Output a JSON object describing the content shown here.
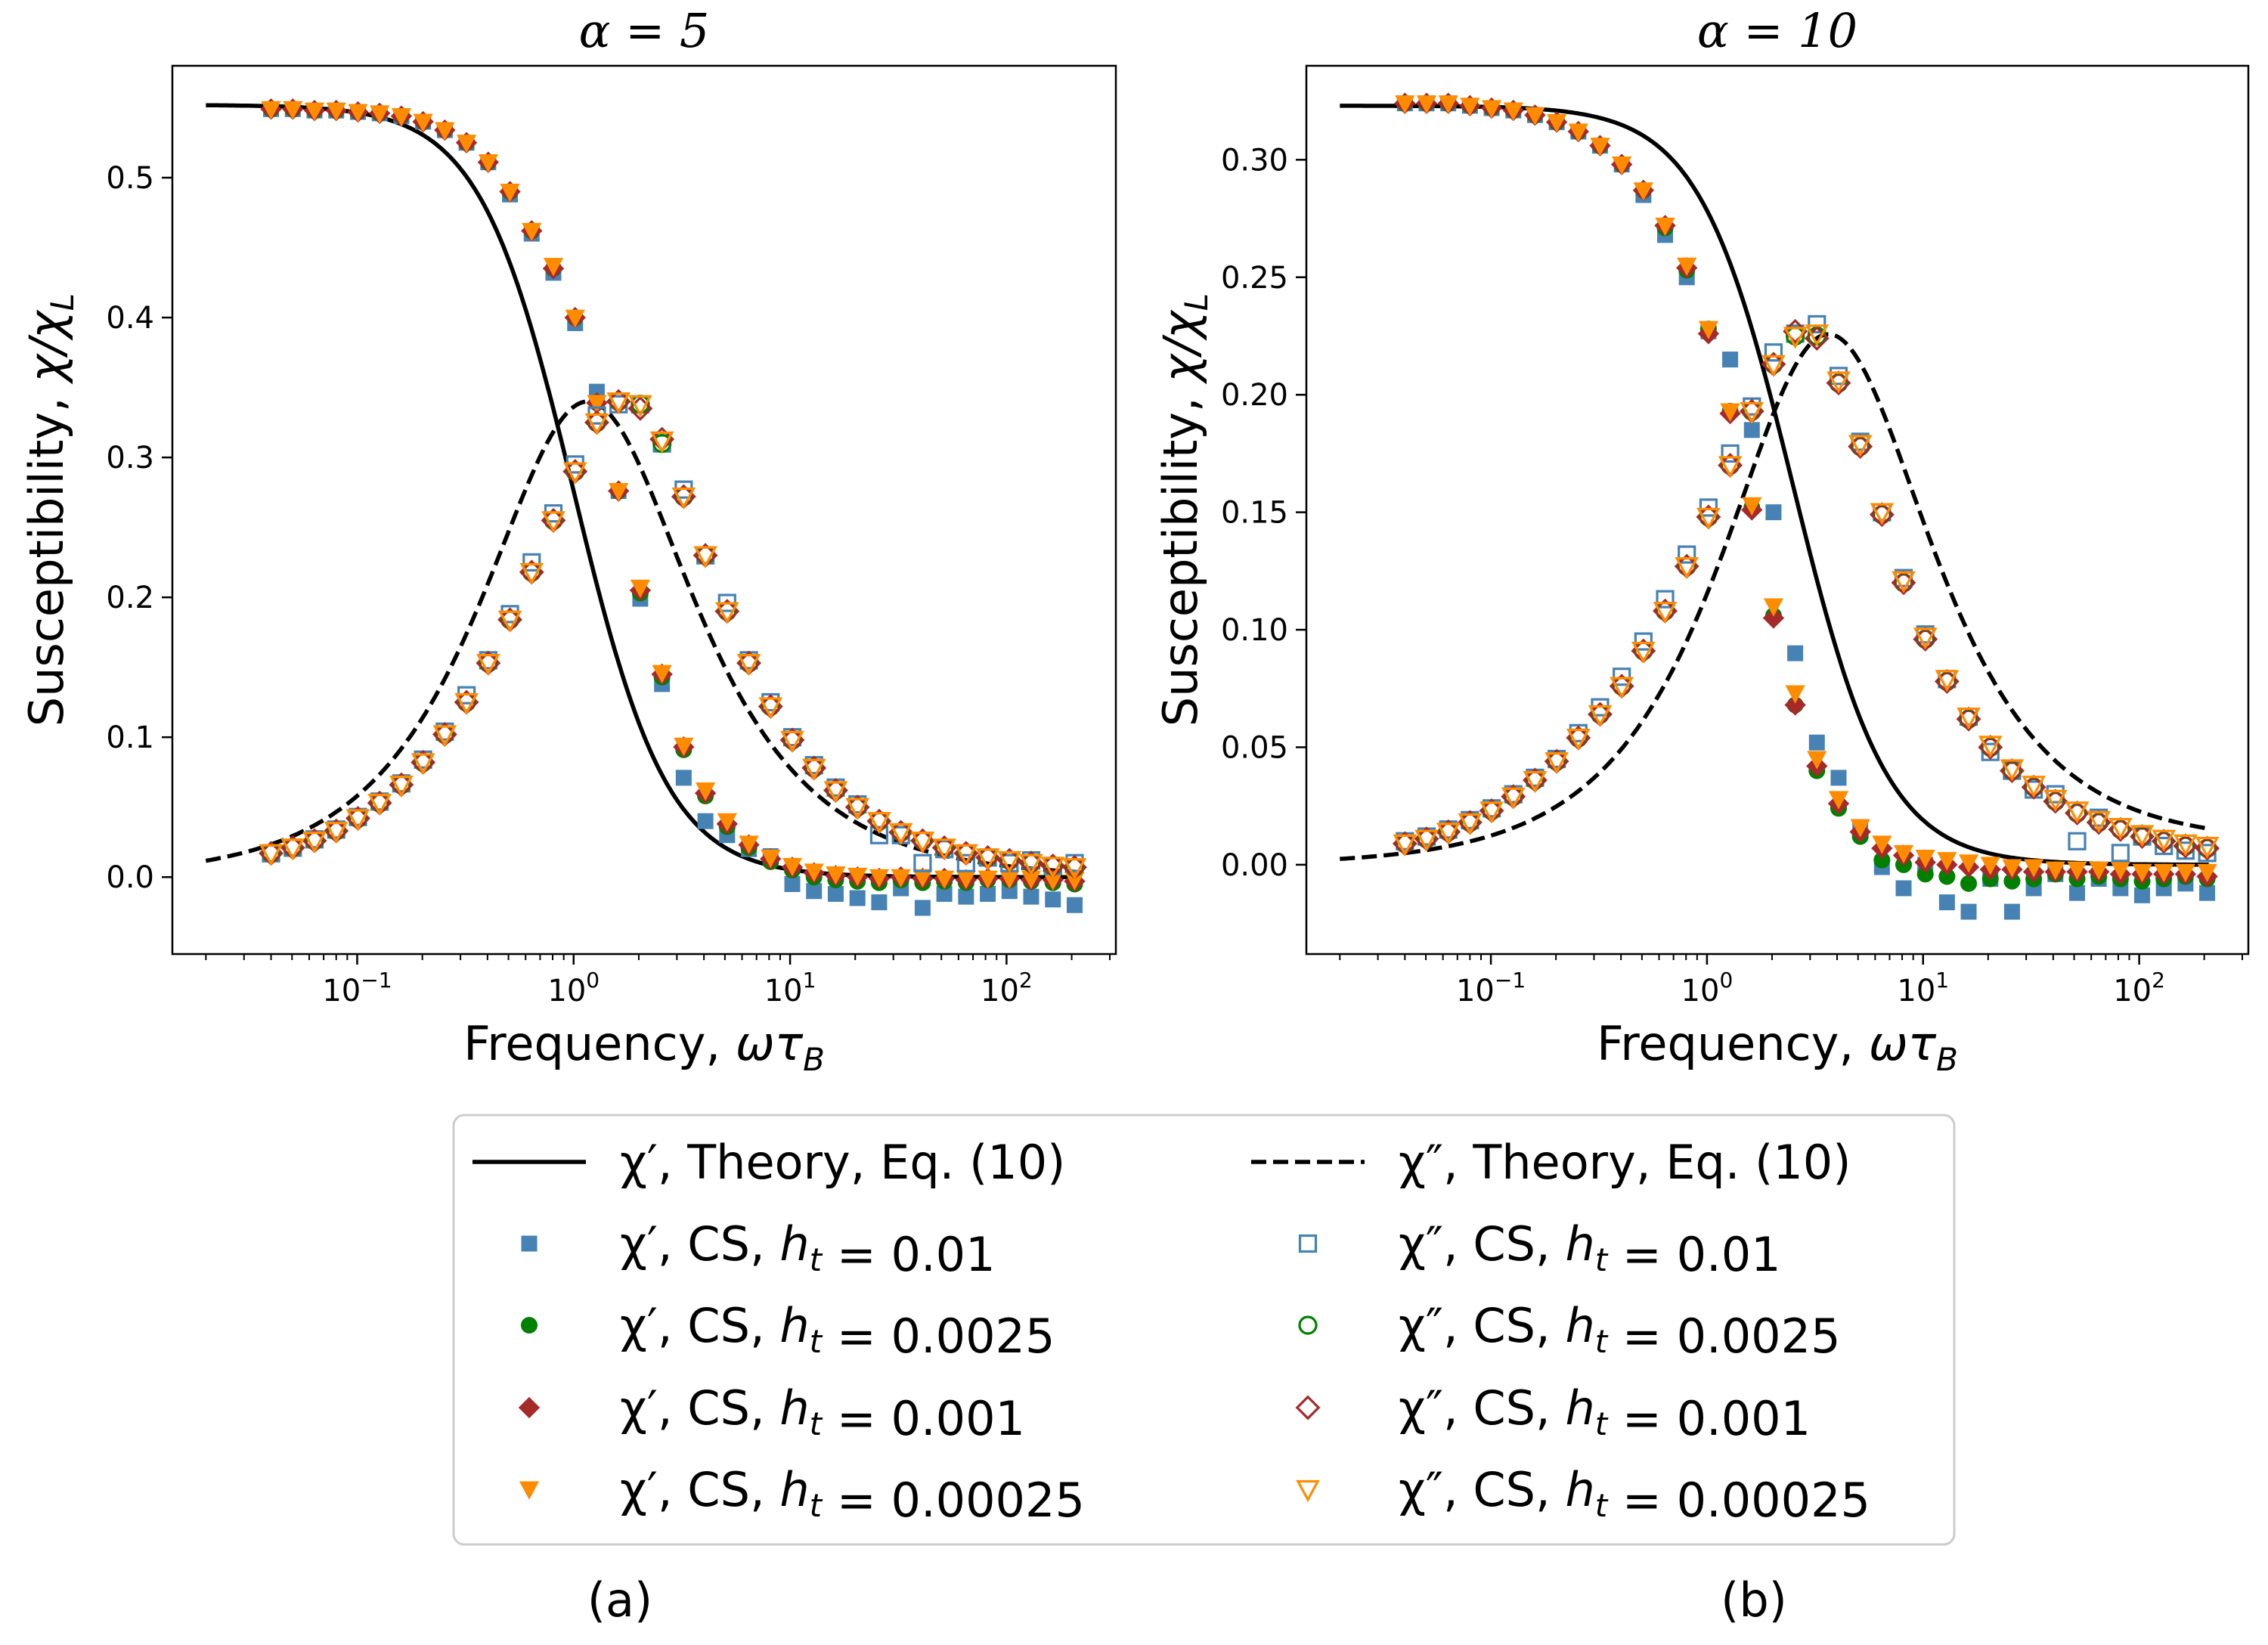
{
  "chart_data": [
    {
      "type": "scatter",
      "panel_label": "(a)",
      "title": "α = 5",
      "xlabel": "Frequency, ωτ_B",
      "ylabel": "Susceptibility, χ/χ_L",
      "xscale": "log",
      "xlim": [
        0.014,
        320
      ],
      "ylim": [
        -0.055,
        0.58
      ],
      "xticks": [
        "10^-1",
        "10^0",
        "10^1",
        "10^2"
      ],
      "yticks": [
        0.0,
        0.1,
        0.2,
        0.3,
        0.4,
        0.5
      ],
      "ytick_labels": [
        "0.0",
        "0.1",
        "0.2",
        "0.3",
        "0.4",
        "0.5"
      ],
      "theory": {
        "chi0": 0.552,
        "tau_real": 1.0,
        "tau_imag": 0.86,
        "peak_imag": 0.34,
        "imag_rolloff": 0.0
      },
      "x": [
        0.04,
        0.0504,
        0.0635,
        0.08,
        0.1008,
        0.127,
        0.16,
        0.2016,
        0.254,
        0.32,
        0.4032,
        0.508,
        0.64,
        0.8063,
        1.016,
        1.28,
        1.613,
        2.032,
        2.56,
        3.225,
        4.064,
        5.12,
        6.451,
        8.127,
        10.24,
        12.9,
        16.25,
        20.48,
        25.8,
        32.51,
        40.96,
        51.61,
        65.02,
        81.92,
        103.2,
        130.0,
        163.8,
        206.4
      ],
      "series": [
        {
          "name": "χ′, CS, h_t = 0.01",
          "marker": "square-filled",
          "color": "#4682b4",
          "values": [
            0.549,
            0.549,
            0.548,
            0.548,
            0.547,
            0.546,
            0.544,
            0.54,
            0.534,
            0.525,
            0.511,
            0.488,
            0.46,
            0.432,
            0.396,
            0.347,
            0.276,
            0.199,
            0.138,
            0.071,
            0.04,
            0.03,
            0.02,
            0.015,
            -0.005,
            -0.01,
            -0.012,
            -0.015,
            -0.018,
            -0.008,
            -0.022,
            -0.012,
            -0.014,
            -0.012,
            -0.01,
            -0.014,
            -0.016,
            -0.02
          ]
        },
        {
          "name": "χ′, CS, h_t = 0.0025",
          "marker": "circle-filled",
          "color": "#008000",
          "values": [
            0.549,
            0.549,
            0.548,
            0.548,
            0.547,
            0.546,
            0.544,
            0.54,
            0.534,
            0.525,
            0.511,
            0.49,
            0.462,
            0.435,
            0.4,
            0.339,
            0.276,
            0.203,
            0.143,
            0.091,
            0.058,
            0.036,
            0.021,
            0.011,
            0.005,
            0.0,
            -0.002,
            -0.003,
            -0.004,
            -0.002,
            -0.004,
            -0.003,
            -0.004,
            -0.002,
            -0.002,
            -0.003,
            -0.004,
            -0.005
          ]
        },
        {
          "name": "χ′, CS, h_t = 0.001",
          "marker": "diamond-filled",
          "color": "#a52a2a",
          "values": [
            0.549,
            0.549,
            0.548,
            0.548,
            0.547,
            0.546,
            0.544,
            0.54,
            0.534,
            0.525,
            0.511,
            0.49,
            0.462,
            0.435,
            0.4,
            0.339,
            0.276,
            0.205,
            0.145,
            0.093,
            0.06,
            0.038,
            0.023,
            0.013,
            0.007,
            0.003,
            0.001,
            0.0,
            -0.001,
            0.0,
            -0.001,
            -0.001,
            -0.002,
            -0.001,
            -0.001,
            -0.002,
            -0.002,
            -0.003
          ]
        },
        {
          "name": "χ′, CS, h_t = 0.00025",
          "marker": "triangle-down-filled",
          "color": "#ff8c00",
          "values": [
            0.549,
            0.549,
            0.548,
            0.548,
            0.547,
            0.546,
            0.544,
            0.54,
            0.534,
            0.525,
            0.511,
            0.49,
            0.462,
            0.437,
            0.4,
            0.339,
            0.276,
            0.207,
            0.146,
            0.094,
            0.062,
            0.04,
            0.024,
            0.014,
            0.008,
            0.004,
            0.002,
            0.001,
            0.0,
            0.0,
            0.0,
            -0.001,
            -0.001,
            -0.001,
            -0.001,
            -0.001,
            -0.002,
            -0.002
          ]
        },
        {
          "name": "χ″, CS, h_t = 0.01",
          "marker": "square-open",
          "color": "#4682b4",
          "values": [
            0.017,
            0.021,
            0.027,
            0.034,
            0.043,
            0.054,
            0.067,
            0.084,
            0.104,
            0.13,
            0.155,
            0.188,
            0.225,
            0.26,
            0.295,
            0.33,
            0.338,
            0.338,
            0.31,
            0.277,
            0.23,
            0.196,
            0.155,
            0.125,
            0.1,
            0.08,
            0.064,
            0.052,
            0.03,
            0.03,
            0.01,
            0.02,
            0.01,
            0.014,
            0.01,
            0.012,
            0.008,
            0.01
          ]
        },
        {
          "name": "χ″, CS, h_t = 0.0025",
          "marker": "circle-open",
          "color": "#008000",
          "values": [
            0.017,
            0.021,
            0.026,
            0.033,
            0.042,
            0.053,
            0.066,
            0.082,
            0.102,
            0.125,
            0.153,
            0.184,
            0.218,
            0.255,
            0.29,
            0.325,
            0.34,
            0.338,
            0.31,
            0.272,
            0.23,
            0.19,
            0.153,
            0.122,
            0.098,
            0.078,
            0.062,
            0.05,
            0.04,
            0.032,
            0.026,
            0.021,
            0.017,
            0.014,
            0.012,
            0.01,
            0.008,
            0.007
          ]
        },
        {
          "name": "χ″, CS, h_t = 0.001",
          "marker": "diamond-open",
          "color": "#a52a2a",
          "values": [
            0.017,
            0.021,
            0.026,
            0.033,
            0.042,
            0.053,
            0.066,
            0.082,
            0.102,
            0.125,
            0.153,
            0.184,
            0.218,
            0.255,
            0.29,
            0.325,
            0.34,
            0.335,
            0.313,
            0.272,
            0.23,
            0.19,
            0.153,
            0.122,
            0.098,
            0.078,
            0.062,
            0.05,
            0.04,
            0.032,
            0.026,
            0.021,
            0.017,
            0.014,
            0.012,
            0.01,
            0.008,
            0.007
          ]
        },
        {
          "name": "χ″, CS, h_t = 0.00025",
          "marker": "triangle-down-open",
          "color": "#ff8c00",
          "values": [
            0.017,
            0.021,
            0.026,
            0.033,
            0.042,
            0.053,
            0.066,
            0.082,
            0.102,
            0.125,
            0.153,
            0.184,
            0.218,
            0.255,
            0.29,
            0.325,
            0.34,
            0.338,
            0.312,
            0.272,
            0.23,
            0.19,
            0.153,
            0.122,
            0.098,
            0.078,
            0.062,
            0.05,
            0.04,
            0.032,
            0.026,
            0.021,
            0.017,
            0.014,
            0.012,
            0.01,
            0.008,
            0.007
          ]
        }
      ]
    },
    {
      "type": "scatter",
      "panel_label": "(b)",
      "title": "α = 10",
      "xlabel": "Frequency, ωτ_B",
      "ylabel": "Susceptibility, χ/χ_L",
      "xscale": "log",
      "xlim": [
        0.014,
        320
      ],
      "ylim": [
        -0.038,
        0.34
      ],
      "xticks": [
        "10^-1",
        "10^0",
        "10^1",
        "10^2"
      ],
      "yticks": [
        0.0,
        0.05,
        0.1,
        0.15,
        0.2,
        0.25,
        0.3
      ],
      "ytick_labels": [
        "0.00",
        "0.05",
        "0.10",
        "0.15",
        "0.20",
        "0.25",
        "0.30"
      ],
      "theory": {
        "chi0": 0.323,
        "tau_real": 0.4,
        "tau_imag": 0.275,
        "peak_imag": 0.225,
        "imag_rolloff": 0.009
      },
      "x": [
        0.04,
        0.0504,
        0.0635,
        0.08,
        0.1008,
        0.127,
        0.16,
        0.2016,
        0.254,
        0.32,
        0.4032,
        0.508,
        0.64,
        0.8063,
        1.016,
        1.28,
        1.613,
        2.032,
        2.56,
        3.225,
        4.064,
        5.12,
        6.451,
        8.127,
        10.24,
        12.9,
        16.25,
        20.48,
        25.8,
        32.51,
        40.96,
        51.61,
        65.02,
        81.92,
        103.2,
        130.0,
        163.8,
        206.4
      ],
      "series": [
        {
          "name": "χ′, CS, h_t = 0.01",
          "marker": "square-filled",
          "color": "#4682b4",
          "values": [
            0.324,
            0.324,
            0.324,
            0.323,
            0.322,
            0.321,
            0.319,
            0.316,
            0.312,
            0.306,
            0.298,
            0.285,
            0.268,
            0.25,
            0.227,
            0.215,
            0.185,
            0.15,
            0.09,
            0.052,
            0.037,
            0.016,
            -0.001,
            -0.01,
            0.0,
            -0.016,
            -0.02,
            -0.006,
            -0.02,
            -0.01,
            -0.004,
            -0.012,
            -0.006,
            -0.01,
            -0.013,
            -0.01,
            -0.008,
            -0.012
          ]
        },
        {
          "name": "χ′, CS, h_t = 0.0025",
          "marker": "circle-filled",
          "color": "#008000",
          "values": [
            0.324,
            0.324,
            0.324,
            0.323,
            0.322,
            0.321,
            0.319,
            0.316,
            0.312,
            0.306,
            0.298,
            0.287,
            0.271,
            0.253,
            0.228,
            0.193,
            0.152,
            0.106,
            0.068,
            0.04,
            0.024,
            0.012,
            0.002,
            0.0,
            -0.004,
            -0.005,
            -0.008,
            -0.006,
            -0.007,
            -0.006,
            -0.004,
            -0.006,
            -0.005,
            -0.006,
            -0.007,
            -0.006,
            -0.005,
            -0.006
          ]
        },
        {
          "name": "χ′, CS, h_t = 0.001",
          "marker": "diamond-filled",
          "color": "#a52a2a",
          "values": [
            0.324,
            0.324,
            0.324,
            0.323,
            0.322,
            0.321,
            0.319,
            0.316,
            0.312,
            0.306,
            0.298,
            0.287,
            0.272,
            0.254,
            0.226,
            0.192,
            0.151,
            0.105,
            0.068,
            0.042,
            0.026,
            0.014,
            0.007,
            0.004,
            0.001,
            0.0,
            -0.001,
            -0.002,
            -0.002,
            -0.003,
            -0.003,
            -0.003,
            -0.003,
            -0.004,
            -0.004,
            -0.004,
            -0.004,
            -0.005
          ]
        },
        {
          "name": "χ′, CS, h_t = 0.00025",
          "marker": "triangle-down-filled",
          "color": "#ff8c00",
          "values": [
            0.324,
            0.324,
            0.324,
            0.323,
            0.322,
            0.321,
            0.319,
            0.316,
            0.312,
            0.306,
            0.298,
            0.287,
            0.272,
            0.255,
            0.228,
            0.193,
            0.153,
            0.11,
            0.073,
            0.045,
            0.028,
            0.016,
            0.009,
            0.005,
            0.003,
            0.002,
            0.001,
            0.0,
            -0.001,
            -0.001,
            -0.002,
            -0.002,
            -0.002,
            -0.002,
            -0.003,
            -0.003,
            -0.003,
            -0.003
          ]
        },
        {
          "name": "χ″, CS, h_t = 0.01",
          "marker": "square-open",
          "color": "#4682b4",
          "values": [
            0.01,
            0.012,
            0.015,
            0.019,
            0.024,
            0.03,
            0.037,
            0.045,
            0.056,
            0.067,
            0.08,
            0.095,
            0.113,
            0.132,
            0.152,
            0.175,
            0.195,
            0.218,
            0.226,
            0.23,
            0.208,
            0.18,
            0.15,
            0.122,
            0.098,
            0.079,
            0.063,
            0.048,
            0.04,
            0.032,
            0.03,
            0.01,
            0.02,
            0.005,
            0.012,
            0.008,
            0.006,
            0.005
          ]
        },
        {
          "name": "χ″, CS, h_t = 0.0025",
          "marker": "circle-open",
          "color": "#008000",
          "values": [
            0.009,
            0.011,
            0.014,
            0.018,
            0.023,
            0.029,
            0.036,
            0.044,
            0.054,
            0.064,
            0.076,
            0.091,
            0.108,
            0.127,
            0.148,
            0.17,
            0.193,
            0.213,
            0.225,
            0.225,
            0.205,
            0.178,
            0.149,
            0.12,
            0.096,
            0.078,
            0.062,
            0.05,
            0.04,
            0.033,
            0.027,
            0.022,
            0.018,
            0.015,
            0.012,
            0.01,
            0.008,
            0.007
          ]
        },
        {
          "name": "χ″, CS, h_t = 0.001",
          "marker": "diamond-open",
          "color": "#a52a2a",
          "values": [
            0.009,
            0.011,
            0.014,
            0.018,
            0.023,
            0.029,
            0.036,
            0.044,
            0.054,
            0.064,
            0.076,
            0.091,
            0.108,
            0.127,
            0.148,
            0.17,
            0.193,
            0.213,
            0.227,
            0.224,
            0.205,
            0.178,
            0.149,
            0.12,
            0.096,
            0.078,
            0.062,
            0.05,
            0.04,
            0.033,
            0.027,
            0.022,
            0.018,
            0.015,
            0.012,
            0.01,
            0.008,
            0.007
          ]
        },
        {
          "name": "χ″, CS, h_t = 0.00025",
          "marker": "triangle-down-open",
          "color": "#ff8c00",
          "values": [
            0.009,
            0.011,
            0.014,
            0.018,
            0.023,
            0.029,
            0.036,
            0.044,
            0.054,
            0.064,
            0.076,
            0.091,
            0.108,
            0.127,
            0.148,
            0.17,
            0.193,
            0.213,
            0.225,
            0.226,
            0.206,
            0.179,
            0.15,
            0.121,
            0.097,
            0.079,
            0.063,
            0.051,
            0.041,
            0.034,
            0.028,
            0.023,
            0.019,
            0.016,
            0.013,
            0.011,
            0.009,
            0.008
          ]
        }
      ]
    }
  ],
  "legend": [
    {
      "label": "χ′, Theory, Eq. (10)",
      "marker": "line-solid",
      "color": "#000000"
    },
    {
      "label": "χ″, Theory, Eq. (10)",
      "marker": "line-dashed",
      "color": "#000000"
    },
    {
      "label": "χ′, CS, h_t = 0.01",
      "marker": "square-filled",
      "color": "#4682b4"
    },
    {
      "label": "χ″, CS, h_t = 0.01",
      "marker": "square-open",
      "color": "#4682b4"
    },
    {
      "label": "χ′, CS, h_t = 0.0025",
      "marker": "circle-filled",
      "color": "#008000"
    },
    {
      "label": "χ″, CS, h_t = 0.0025",
      "marker": "circle-open",
      "color": "#008000"
    },
    {
      "label": "χ′, CS, h_t = 0.001",
      "marker": "diamond-filled",
      "color": "#a52a2a"
    },
    {
      "label": "χ″, CS, h_t = 0.001",
      "marker": "diamond-open",
      "color": "#a52a2a"
    },
    {
      "label": "χ′, CS, h_t = 0.00025",
      "marker": "triangle-down-filled",
      "color": "#ff8c00"
    },
    {
      "label": "χ″, CS, h_t = 0.00025",
      "marker": "triangle-down-open",
      "color": "#ff8c00"
    }
  ]
}
